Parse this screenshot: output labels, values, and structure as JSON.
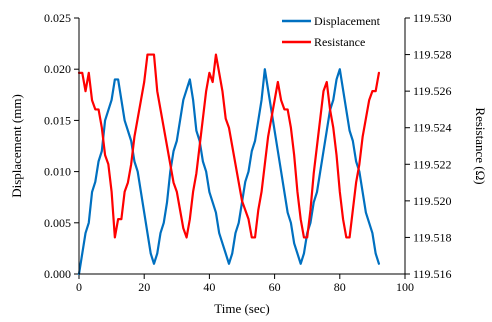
{
  "chart_data": {
    "type": "line",
    "title": "",
    "xlabel": "Time (sec)",
    "ylabel": "Displacement (mm)",
    "y2label": "Resistance (Ω)",
    "xlim": [
      0,
      100
    ],
    "ylim": [
      0.0,
      0.025
    ],
    "y2lim": [
      119.516,
      119.53
    ],
    "x_ticks": [
      0,
      20,
      40,
      60,
      80,
      100
    ],
    "x_tick_labels": [
      "0",
      "20",
      "40",
      "60",
      "80",
      "100"
    ],
    "y_ticks": [
      0.0,
      0.005,
      0.01,
      0.015,
      0.02,
      0.025
    ],
    "y_tick_labels": [
      "0.000",
      "0.005",
      "0.010",
      "0.015",
      "0.020",
      "0.025"
    ],
    "y2_ticks": [
      119.516,
      119.518,
      119.52,
      119.522,
      119.524,
      119.526,
      119.528,
      119.53
    ],
    "y2_tick_labels": [
      "119.516",
      "119.518",
      "119.520",
      "119.522",
      "119.524",
      "119.526",
      "119.528",
      "119.530"
    ],
    "grid": false,
    "legend_position": "top-right",
    "series": [
      {
        "name": "Displacement",
        "axis": "left",
        "color": "#0070C0",
        "x": [
          0,
          1,
          2,
          3,
          4,
          5,
          6,
          7,
          8,
          9,
          10,
          11,
          12,
          13,
          14,
          15,
          16,
          17,
          18,
          19,
          20,
          21,
          22,
          23,
          24,
          25,
          26,
          27,
          28,
          29,
          30,
          31,
          32,
          33,
          34,
          35,
          36,
          37,
          38,
          39,
          40,
          41,
          42,
          43,
          44,
          45,
          46,
          47,
          48,
          49,
          50,
          51,
          52,
          53,
          54,
          55,
          56,
          57,
          58,
          59,
          60,
          61,
          62,
          63,
          64,
          65,
          66,
          67,
          68,
          69,
          70,
          71,
          72,
          73,
          74,
          75,
          76,
          77,
          78,
          79,
          80,
          81,
          82,
          83,
          84,
          85,
          86,
          87,
          88,
          89,
          90,
          91,
          92
        ],
        "values": [
          0.0,
          0.002,
          0.004,
          0.005,
          0.008,
          0.009,
          0.011,
          0.012,
          0.015,
          0.016,
          0.017,
          0.019,
          0.019,
          0.017,
          0.015,
          0.014,
          0.013,
          0.011,
          0.01,
          0.008,
          0.006,
          0.004,
          0.002,
          0.001,
          0.002,
          0.004,
          0.005,
          0.007,
          0.01,
          0.012,
          0.013,
          0.015,
          0.017,
          0.018,
          0.019,
          0.017,
          0.014,
          0.013,
          0.011,
          0.01,
          0.008,
          0.007,
          0.006,
          0.004,
          0.003,
          0.002,
          0.001,
          0.002,
          0.004,
          0.005,
          0.007,
          0.009,
          0.01,
          0.012,
          0.013,
          0.015,
          0.017,
          0.02,
          0.018,
          0.016,
          0.014,
          0.012,
          0.01,
          0.008,
          0.006,
          0.005,
          0.003,
          0.002,
          0.001,
          0.002,
          0.004,
          0.005,
          0.007,
          0.008,
          0.01,
          0.012,
          0.014,
          0.016,
          0.017,
          0.019,
          0.02,
          0.018,
          0.016,
          0.014,
          0.013,
          0.011,
          0.01,
          0.008,
          0.006,
          0.005,
          0.004,
          0.002,
          0.001
        ]
      },
      {
        "name": "Resistance",
        "axis": "right",
        "color": "#FF0000",
        "x": [
          0,
          1,
          2,
          3,
          4,
          5,
          6,
          7,
          8,
          9,
          10,
          11,
          12,
          13,
          14,
          15,
          16,
          17,
          18,
          19,
          20,
          21,
          22,
          23,
          24,
          25,
          26,
          27,
          28,
          29,
          30,
          31,
          32,
          33,
          34,
          35,
          36,
          37,
          38,
          39,
          40,
          41,
          42,
          43,
          44,
          45,
          46,
          47,
          48,
          49,
          50,
          51,
          52,
          53,
          54,
          55,
          56,
          57,
          58,
          59,
          60,
          61,
          62,
          63,
          64,
          65,
          66,
          67,
          68,
          69,
          70,
          71,
          72,
          73,
          74,
          75,
          76,
          77,
          78,
          79,
          80,
          81,
          82,
          83,
          84,
          85,
          86,
          87,
          88,
          89,
          90,
          91,
          92
        ],
        "values": [
          119.527,
          119.527,
          119.526,
          119.527,
          119.5255,
          119.525,
          119.525,
          119.524,
          119.5225,
          119.522,
          119.5205,
          119.518,
          119.519,
          119.519,
          119.5205,
          119.521,
          119.522,
          119.5235,
          119.5245,
          119.5255,
          119.5265,
          119.528,
          119.528,
          119.528,
          119.526,
          119.525,
          119.524,
          119.523,
          119.522,
          119.521,
          119.5205,
          119.5195,
          119.5185,
          119.518,
          119.519,
          119.5205,
          119.5215,
          119.523,
          119.5245,
          119.526,
          119.527,
          119.5265,
          119.528,
          119.527,
          119.526,
          119.5245,
          119.524,
          119.523,
          119.522,
          119.521,
          119.52,
          119.5195,
          119.519,
          119.518,
          119.518,
          119.5195,
          119.5205,
          119.522,
          119.5235,
          119.5245,
          119.5255,
          119.5265,
          119.5255,
          119.525,
          119.525,
          119.524,
          119.5225,
          119.5205,
          119.519,
          119.518,
          119.518,
          119.5195,
          119.5215,
          119.523,
          119.5245,
          119.526,
          119.5265,
          119.525,
          119.524,
          119.5225,
          119.5205,
          119.519,
          119.518,
          119.518,
          119.5195,
          119.521,
          119.522,
          119.5235,
          119.5245,
          119.5255,
          119.526,
          119.526,
          119.527
        ]
      }
    ]
  }
}
